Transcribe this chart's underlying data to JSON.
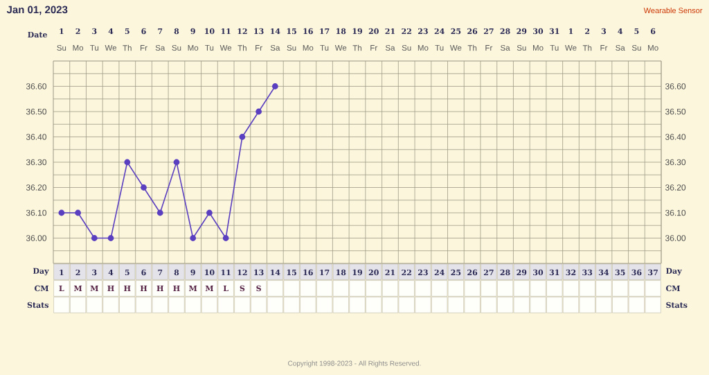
{
  "chart_data": {
    "type": "line",
    "title": "Jan 01, 2023",
    "categories": [
      "1",
      "2",
      "3",
      "4",
      "5",
      "6",
      "7",
      "8",
      "9",
      "10",
      "11",
      "12",
      "13",
      "14",
      "15",
      "16",
      "17",
      "18",
      "19",
      "20",
      "21",
      "22",
      "23",
      "24",
      "25",
      "26",
      "27",
      "28",
      "29",
      "30",
      "31",
      "32",
      "33",
      "34",
      "35",
      "36",
      "37"
    ],
    "series": [
      {
        "color": "#5a3fc0",
        "values": [
          36.1,
          36.1,
          36.0,
          36.0,
          36.3,
          36.2,
          36.1,
          36.3,
          36.0,
          36.1,
          36.0,
          36.4,
          36.5,
          36.6,
          null,
          null,
          null,
          null,
          null,
          null,
          null,
          null,
          null,
          null,
          null,
          null,
          null,
          null,
          null,
          null,
          null,
          null,
          null,
          null,
          null,
          null,
          null
        ]
      }
    ],
    "ylim": [
      35.9,
      36.7
    ],
    "yticks": [
      {
        "value": 36.0,
        "label": "36.00"
      },
      {
        "value": 36.1,
        "label": "36.10"
      },
      {
        "value": 36.2,
        "label": "36.20"
      },
      {
        "value": 36.3,
        "label": "36.30"
      },
      {
        "value": 36.4,
        "label": "36.40"
      },
      {
        "value": 36.5,
        "label": "36.50"
      },
      {
        "value": 36.6,
        "label": "36.60"
      }
    ],
    "y2lim": [
      35.9,
      36.7
    ],
    "y2ticks": [
      {
        "value": 36.0,
        "label": "36.00"
      },
      {
        "value": 36.1,
        "label": "36.10"
      },
      {
        "value": 36.2,
        "label": "36.20"
      },
      {
        "value": 36.3,
        "label": "36.30"
      },
      {
        "value": 36.4,
        "label": "36.40"
      },
      {
        "value": 36.5,
        "label": "36.50"
      },
      {
        "value": 36.6,
        "label": "36.60"
      }
    ],
    "grid": true,
    "marker": "circle",
    "line_style": "solid",
    "annotations": [
      "Wearable Sensor",
      "Copyright 1998-2023 - All Rights Reserved.",
      "Date",
      "Day",
      "CM",
      "Stats",
      "Day",
      "CM",
      "Stats",
      "1",
      "2",
      "3",
      "4",
      "5",
      "6",
      "7",
      "8",
      "9",
      "10",
      "11",
      "12",
      "13",
      "14",
      "15",
      "16",
      "17",
      "18",
      "19",
      "20",
      "21",
      "22",
      "23",
      "24",
      "25",
      "26",
      "27",
      "28",
      "29",
      "30",
      "31",
      "1",
      "2",
      "3",
      "4",
      "5",
      "6",
      "Su",
      "Mo",
      "Tu",
      "We",
      "Th",
      "Fr",
      "Sa",
      "Su",
      "Mo",
      "Tu",
      "We",
      "Th",
      "Fr",
      "Sa",
      "Su",
      "Mo",
      "Tu",
      "We",
      "Th",
      "Fr",
      "Sa",
      "Su",
      "Mo",
      "Tu",
      "We",
      "Th",
      "Fr",
      "Sa",
      "Su",
      "Mo",
      "Tu",
      "We",
      "Th",
      "Fr",
      "Sa",
      "Su",
      "Mo",
      "L",
      "M",
      "M",
      "H",
      "H",
      "H",
      "H",
      "H",
      "M",
      "M",
      "L",
      "S",
      "S"
    ]
  }
}
